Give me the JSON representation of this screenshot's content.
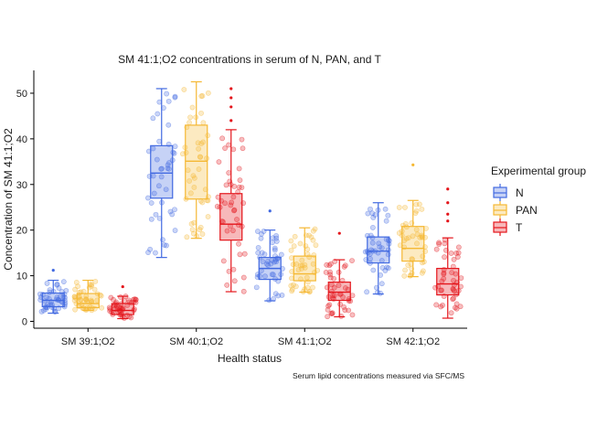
{
  "chart_data": {
    "type": "box",
    "title": "SM 41:1;O2 concentrations in serum of N, PAN, and T",
    "xlabel": "Health status",
    "ylabel": "Concentration of SM 41:1;O2",
    "caption": "Serum lipid concentrations measured via SFC/MS",
    "categories": [
      "SM 39:1;O2",
      "SM 40:1;O2",
      "SM 41:1;O2",
      "SM 42:1;O2"
    ],
    "ylim": [
      -1.5,
      55
    ],
    "yticks": [
      0,
      10,
      20,
      30,
      40,
      50
    ],
    "grid": false,
    "legend": {
      "title": "Experimental group",
      "position": "right"
    },
    "series": [
      {
        "name": "N",
        "color": "#4169E1",
        "boxes": [
          {
            "min": 1.8,
            "q1": 3.2,
            "median": 4.6,
            "q3": 6.2,
            "max": 9.0,
            "outliers": [
              11.2
            ]
          },
          {
            "min": 14.0,
            "q1": 27.0,
            "median": 32.5,
            "q3": 38.5,
            "max": 51.0,
            "outliers": []
          },
          {
            "min": 4.5,
            "q1": 9.2,
            "median": 11.6,
            "q3": 14.0,
            "max": 20.0,
            "outliers": [
              24.2
            ]
          },
          {
            "min": 6.0,
            "q1": 12.8,
            "median": 15.4,
            "q3": 18.5,
            "max": 26.0,
            "outliers": []
          }
        ]
      },
      {
        "name": "PAN",
        "color": "#F5B833",
        "boxes": [
          {
            "min": 2.4,
            "q1": 3.0,
            "median": 3.9,
            "q3": 6.1,
            "max": 9.0,
            "outliers": []
          },
          {
            "min": 18.2,
            "q1": 26.8,
            "median": 35.1,
            "q3": 43.0,
            "max": 52.5,
            "outliers": []
          },
          {
            "min": 6.4,
            "q1": 8.9,
            "median": 10.4,
            "q3": 14.3,
            "max": 20.5,
            "outliers": []
          },
          {
            "min": 9.8,
            "q1": 13.2,
            "median": 16.0,
            "q3": 20.8,
            "max": 26.5,
            "outliers": [
              34.3
            ]
          }
        ]
      },
      {
        "name": "T",
        "color": "#E4151B",
        "boxes": [
          {
            "min": 0.6,
            "q1": 1.5,
            "median": 2.4,
            "q3": 3.9,
            "max": 5.5,
            "outliers": [
              7.6
            ]
          },
          {
            "min": 6.5,
            "q1": 17.8,
            "median": 21.3,
            "q3": 28.0,
            "max": 42.0,
            "outliers": [
              44.0,
              47.0,
              49.0,
              51.0
            ]
          },
          {
            "min": 1.0,
            "q1": 4.6,
            "median": 6.4,
            "q3": 8.6,
            "max": 13.5,
            "outliers": [
              19.3
            ]
          },
          {
            "min": 0.7,
            "q1": 5.8,
            "median": 8.2,
            "q3": 11.6,
            "max": 18.3,
            "outliers": [
              22.0,
              23.5,
              26.0,
              29.0
            ]
          }
        ]
      }
    ]
  }
}
